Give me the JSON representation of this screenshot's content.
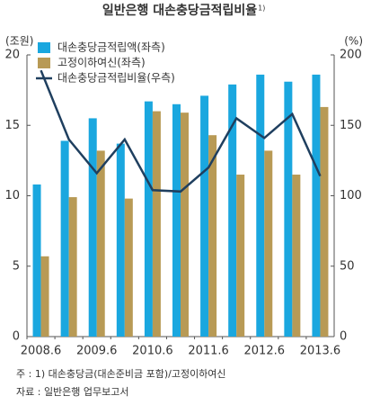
{
  "chart_data": {
    "type": "bar_line",
    "title": "일반은행  대손충당금적립비율",
    "title_note": "1)",
    "y_unit": "(조원)",
    "y2_unit": "(%)",
    "categories": [
      "2008.6",
      null,
      "2009.6",
      null,
      "2010.6",
      null,
      "2011.6",
      null,
      "2012.6",
      null,
      "2013.6"
    ],
    "series": [
      {
        "name": "대손충당금적립액(좌측)",
        "type": "bar",
        "color": "#1aa7df",
        "values": [
          10.8,
          13.9,
          15.5,
          13.7,
          16.7,
          16.5,
          17.1,
          17.9,
          18.6,
          18.1,
          18.6
        ]
      },
      {
        "name": "고정이하여신(좌측)",
        "type": "bar",
        "color": "#b89a55",
        "values": [
          5.7,
          9.9,
          13.2,
          9.8,
          16.0,
          15.9,
          14.3,
          11.5,
          13.2,
          11.5,
          16.3
        ]
      },
      {
        "name": "대손충당금적립비율(우측)",
        "type": "line",
        "axis": "y2",
        "color": "#1f3f5f",
        "values": [
          189,
          140,
          116,
          140,
          104,
          103,
          120,
          155,
          141,
          158,
          114
        ]
      }
    ],
    "ylim": [
      0,
      20
    ],
    "yticks": [
      0,
      5,
      10,
      15,
      20
    ],
    "y2lim": [
      0,
      200
    ],
    "y2ticks": [
      0,
      50,
      100,
      150,
      200
    ],
    "grid": false,
    "legend": "upper left",
    "notes": [
      "주 : 1) 대손충당금(대손준비금 포함)/고정이하여신",
      "자료 : 일반은행 업무보고서"
    ]
  }
}
